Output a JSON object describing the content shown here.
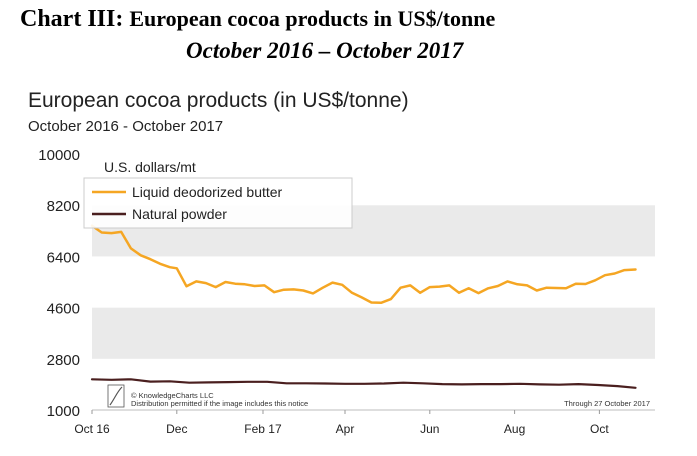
{
  "document": {
    "title_prefix": "Chart III:",
    "title_main": "European cocoa products in US$/tonne",
    "subtitle": "October 2016 – October 2017"
  },
  "chart_data": {
    "type": "line",
    "title": "European cocoa products (in US$/tonne)",
    "subtitle": "October 2016 - October 2017",
    "ylabel": "U.S. dollars/mt",
    "xlabel": "",
    "ylim": [
      1000,
      10000
    ],
    "yticks": [
      1000,
      2800,
      4600,
      6400,
      8200,
      10000
    ],
    "ytick_labels": [
      "1000",
      "2800",
      "4600",
      "6400",
      "8200",
      "10000"
    ],
    "x_range": [
      "2016-10-01",
      "2017-11-10"
    ],
    "xticks": [
      {
        "date": "2016-10-01",
        "label": "Oct 16"
      },
      {
        "date": "2016-12-01",
        "label": "Dec"
      },
      {
        "date": "2017-02-01",
        "label": "Feb 17"
      },
      {
        "date": "2017-04-01",
        "label": "Apr"
      },
      {
        "date": "2017-06-01",
        "label": "Jun"
      },
      {
        "date": "2017-08-01",
        "label": "Aug"
      },
      {
        "date": "2017-10-01",
        "label": "Oct"
      }
    ],
    "grid": "horizontal bands",
    "legend_position": "top-left",
    "series": [
      {
        "name": "Liquid deodorized butter",
        "color": "#f5a623",
        "points": [
          [
            "2016-10-01",
            7480
          ],
          [
            "2016-10-08",
            7240
          ],
          [
            "2016-10-15",
            7220
          ],
          [
            "2016-10-22",
            7260
          ],
          [
            "2016-10-29",
            6680
          ],
          [
            "2016-11-05",
            6440
          ],
          [
            "2016-11-12",
            6300
          ],
          [
            "2016-11-19",
            6140
          ],
          [
            "2016-11-26",
            6020
          ],
          [
            "2016-12-01",
            5980
          ],
          [
            "2016-12-08",
            5350
          ],
          [
            "2016-12-15",
            5520
          ],
          [
            "2016-12-22",
            5460
          ],
          [
            "2016-12-29",
            5320
          ],
          [
            "2017-01-05",
            5500
          ],
          [
            "2017-01-12",
            5440
          ],
          [
            "2017-01-19",
            5420
          ],
          [
            "2017-01-26",
            5360
          ],
          [
            "2017-02-02",
            5380
          ],
          [
            "2017-02-09",
            5140
          ],
          [
            "2017-02-16",
            5230
          ],
          [
            "2017-02-23",
            5240
          ],
          [
            "2017-03-02",
            5200
          ],
          [
            "2017-03-09",
            5100
          ],
          [
            "2017-03-16",
            5300
          ],
          [
            "2017-03-23",
            5480
          ],
          [
            "2017-03-30",
            5400
          ],
          [
            "2017-04-06",
            5120
          ],
          [
            "2017-04-13",
            4960
          ],
          [
            "2017-04-20",
            4780
          ],
          [
            "2017-04-27",
            4770
          ],
          [
            "2017-05-04",
            4900
          ],
          [
            "2017-05-11",
            5300
          ],
          [
            "2017-05-18",
            5380
          ],
          [
            "2017-05-25",
            5120
          ],
          [
            "2017-06-01",
            5320
          ],
          [
            "2017-06-08",
            5340
          ],
          [
            "2017-06-15",
            5380
          ],
          [
            "2017-06-22",
            5120
          ],
          [
            "2017-06-29",
            5280
          ],
          [
            "2017-07-06",
            5110
          ],
          [
            "2017-07-13",
            5280
          ],
          [
            "2017-07-20",
            5360
          ],
          [
            "2017-07-27",
            5520
          ],
          [
            "2017-08-03",
            5420
          ],
          [
            "2017-08-10",
            5380
          ],
          [
            "2017-08-17",
            5200
          ],
          [
            "2017-08-24",
            5300
          ],
          [
            "2017-08-31",
            5290
          ],
          [
            "2017-09-07",
            5280
          ],
          [
            "2017-09-14",
            5440
          ],
          [
            "2017-09-21",
            5430
          ],
          [
            "2017-09-28",
            5560
          ],
          [
            "2017-10-05",
            5740
          ],
          [
            "2017-10-12",
            5800
          ],
          [
            "2017-10-19",
            5920
          ],
          [
            "2017-10-27",
            5940
          ]
        ]
      },
      {
        "name": "Natural powder",
        "color": "#4a1f1f",
        "points": [
          [
            "2016-10-01",
            2080
          ],
          [
            "2016-10-15",
            2060
          ],
          [
            "2016-10-29",
            2080
          ],
          [
            "2016-11-12",
            2000
          ],
          [
            "2016-11-26",
            2010
          ],
          [
            "2016-12-10",
            1960
          ],
          [
            "2016-12-24",
            1970
          ],
          [
            "2017-01-07",
            1980
          ],
          [
            "2017-01-21",
            1990
          ],
          [
            "2017-02-04",
            1990
          ],
          [
            "2017-02-18",
            1940
          ],
          [
            "2017-03-04",
            1940
          ],
          [
            "2017-03-18",
            1930
          ],
          [
            "2017-04-01",
            1920
          ],
          [
            "2017-04-15",
            1920
          ],
          [
            "2017-04-29",
            1930
          ],
          [
            "2017-05-13",
            1960
          ],
          [
            "2017-05-27",
            1940
          ],
          [
            "2017-06-10",
            1910
          ],
          [
            "2017-06-24",
            1900
          ],
          [
            "2017-07-08",
            1910
          ],
          [
            "2017-07-22",
            1910
          ],
          [
            "2017-08-05",
            1920
          ],
          [
            "2017-08-19",
            1900
          ],
          [
            "2017-09-02",
            1890
          ],
          [
            "2017-09-16",
            1910
          ],
          [
            "2017-09-30",
            1880
          ],
          [
            "2017-10-14",
            1840
          ],
          [
            "2017-10-27",
            1780
          ]
        ]
      }
    ],
    "notes": {
      "copyright": "© KnowledgeCharts LLC",
      "distribution": "Distribution permitted if the image includes this notice",
      "through": "Through 27 October 2017"
    }
  }
}
